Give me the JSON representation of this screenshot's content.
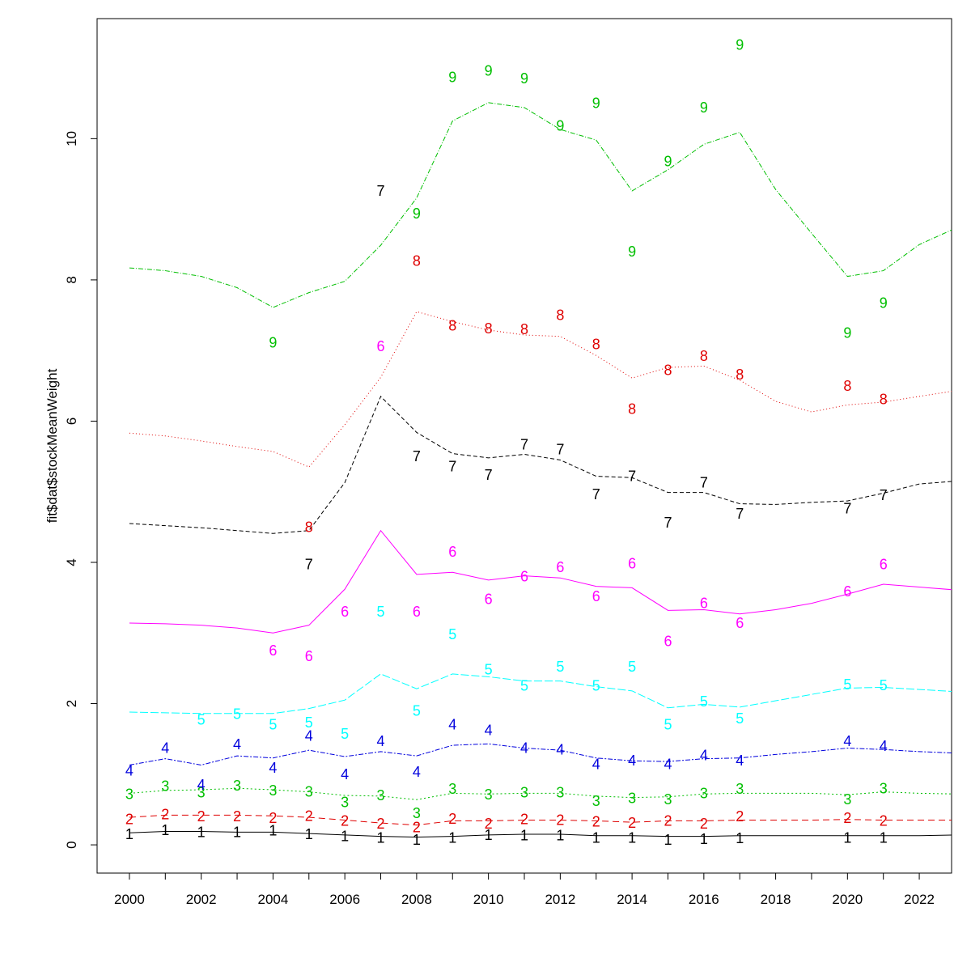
{
  "chart_data": {
    "type": "line",
    "title": "",
    "xlabel": "",
    "ylabel": "fit$dat$stockMeanWeight",
    "xlim": [
      1999.1,
      2022.9
    ],
    "ylim": [
      -0.4,
      11.7
    ],
    "grid": false,
    "legend": "none",
    "x_ticks": [
      2000,
      2002,
      2004,
      2006,
      2008,
      2010,
      2012,
      2014,
      2016,
      2018,
      2020,
      2022
    ],
    "y_ticks": [
      0,
      2,
      4,
      6,
      8,
      10
    ],
    "x": [
      2000,
      2001,
      2002,
      2003,
      2004,
      2005,
      2006,
      2007,
      2008,
      2009,
      2010,
      2011,
      2012,
      2013,
      2014,
      2015,
      2016,
      2017,
      2018,
      2019,
      2020,
      2021,
      2022,
      2023
    ],
    "series": [
      {
        "label": "1",
        "color": "#000000",
        "dash": "",
        "fitted": [
          0.17,
          0.19,
          0.19,
          0.18,
          0.18,
          0.16,
          0.14,
          0.12,
          0.11,
          0.12,
          0.14,
          0.15,
          0.15,
          0.13,
          0.13,
          0.12,
          0.12,
          0.13,
          0.13,
          0.13,
          0.13,
          0.13,
          0.13,
          0.14
        ],
        "observed": [
          {
            "x": 2000,
            "y": 0.15
          },
          {
            "x": 2001,
            "y": 0.21
          },
          {
            "x": 2002,
            "y": 0.18
          },
          {
            "x": 2003,
            "y": 0.18
          },
          {
            "x": 2004,
            "y": 0.2
          },
          {
            "x": 2005,
            "y": 0.15
          },
          {
            "x": 2006,
            "y": 0.12
          },
          {
            "x": 2007,
            "y": 0.1
          },
          {
            "x": 2008,
            "y": 0.07
          },
          {
            "x": 2009,
            "y": 0.1
          },
          {
            "x": 2010,
            "y": 0.14
          },
          {
            "x": 2011,
            "y": 0.13
          },
          {
            "x": 2012,
            "y": 0.13
          },
          {
            "x": 2013,
            "y": 0.1
          },
          {
            "x": 2014,
            "y": 0.1
          },
          {
            "x": 2015,
            "y": 0.07
          },
          {
            "x": 2016,
            "y": 0.08
          },
          {
            "x": 2017,
            "y": 0.09
          },
          {
            "x": 2020,
            "y": 0.1
          },
          {
            "x": 2021,
            "y": 0.1
          }
        ]
      },
      {
        "label": "2",
        "color": "#df0000",
        "dash": "8,5",
        "fitted": [
          0.39,
          0.42,
          0.42,
          0.42,
          0.41,
          0.39,
          0.35,
          0.31,
          0.28,
          0.34,
          0.34,
          0.35,
          0.35,
          0.34,
          0.32,
          0.34,
          0.34,
          0.35,
          0.35,
          0.35,
          0.36,
          0.35,
          0.35,
          0.35
        ],
        "observed": [
          {
            "x": 2000,
            "y": 0.36
          },
          {
            "x": 2001,
            "y": 0.43
          },
          {
            "x": 2002,
            "y": 0.4
          },
          {
            "x": 2003,
            "y": 0.4
          },
          {
            "x": 2004,
            "y": 0.38
          },
          {
            "x": 2005,
            "y": 0.41
          },
          {
            "x": 2006,
            "y": 0.34
          },
          {
            "x": 2007,
            "y": 0.3
          },
          {
            "x": 2008,
            "y": 0.25
          },
          {
            "x": 2009,
            "y": 0.37
          },
          {
            "x": 2010,
            "y": 0.3
          },
          {
            "x": 2011,
            "y": 0.36
          },
          {
            "x": 2012,
            "y": 0.35
          },
          {
            "x": 2013,
            "y": 0.33
          },
          {
            "x": 2014,
            "y": 0.31
          },
          {
            "x": 2015,
            "y": 0.34
          },
          {
            "x": 2016,
            "y": 0.3
          },
          {
            "x": 2017,
            "y": 0.4
          },
          {
            "x": 2020,
            "y": 0.38
          },
          {
            "x": 2021,
            "y": 0.34
          }
        ]
      },
      {
        "label": "3",
        "color": "#00bf00",
        "dash": "2,3",
        "fitted": [
          0.73,
          0.77,
          0.78,
          0.8,
          0.78,
          0.75,
          0.7,
          0.69,
          0.64,
          0.73,
          0.72,
          0.73,
          0.73,
          0.69,
          0.67,
          0.68,
          0.72,
          0.73,
          0.73,
          0.73,
          0.71,
          0.75,
          0.73,
          0.72
        ],
        "observed": [
          {
            "x": 2000,
            "y": 0.72
          },
          {
            "x": 2001,
            "y": 0.83
          },
          {
            "x": 2002,
            "y": 0.74
          },
          {
            "x": 2003,
            "y": 0.84
          },
          {
            "x": 2004,
            "y": 0.77
          },
          {
            "x": 2005,
            "y": 0.75
          },
          {
            "x": 2006,
            "y": 0.6
          },
          {
            "x": 2007,
            "y": 0.7
          },
          {
            "x": 2008,
            "y": 0.45
          },
          {
            "x": 2009,
            "y": 0.79
          },
          {
            "x": 2010,
            "y": 0.71
          },
          {
            "x": 2011,
            "y": 0.74
          },
          {
            "x": 2012,
            "y": 0.74
          },
          {
            "x": 2013,
            "y": 0.62
          },
          {
            "x": 2014,
            "y": 0.66
          },
          {
            "x": 2015,
            "y": 0.64
          },
          {
            "x": 2016,
            "y": 0.73
          },
          {
            "x": 2017,
            "y": 0.79
          },
          {
            "x": 2020,
            "y": 0.64
          },
          {
            "x": 2021,
            "y": 0.8
          }
        ]
      },
      {
        "label": "4",
        "color": "#0000dd",
        "dash": "6,2,2,2",
        "fitted": [
          1.13,
          1.22,
          1.13,
          1.26,
          1.23,
          1.34,
          1.25,
          1.32,
          1.26,
          1.41,
          1.43,
          1.37,
          1.34,
          1.23,
          1.19,
          1.18,
          1.22,
          1.23,
          1.28,
          1.32,
          1.37,
          1.35,
          1.32,
          1.3
        ],
        "observed": [
          {
            "x": 2000,
            "y": 1.05
          },
          {
            "x": 2001,
            "y": 1.37
          },
          {
            "x": 2002,
            "y": 0.85
          },
          {
            "x": 2003,
            "y": 1.42
          },
          {
            "x": 2004,
            "y": 1.09
          },
          {
            "x": 2005,
            "y": 1.54
          },
          {
            "x": 2006,
            "y": 1.0
          },
          {
            "x": 2007,
            "y": 1.47
          },
          {
            "x": 2008,
            "y": 1.03
          },
          {
            "x": 2009,
            "y": 1.7
          },
          {
            "x": 2010,
            "y": 1.62
          },
          {
            "x": 2011,
            "y": 1.37
          },
          {
            "x": 2012,
            "y": 1.35
          },
          {
            "x": 2013,
            "y": 1.14
          },
          {
            "x": 2014,
            "y": 1.19
          },
          {
            "x": 2015,
            "y": 1.14
          },
          {
            "x": 2016,
            "y": 1.27
          },
          {
            "x": 2017,
            "y": 1.19
          },
          {
            "x": 2020,
            "y": 1.47
          },
          {
            "x": 2021,
            "y": 1.4
          }
        ]
      },
      {
        "label": "5",
        "color": "#00ffff",
        "dash": "10,3",
        "fitted": [
          1.88,
          1.87,
          1.86,
          1.86,
          1.86,
          1.93,
          2.05,
          2.42,
          2.21,
          2.42,
          2.38,
          2.32,
          2.32,
          2.24,
          2.18,
          1.94,
          1.99,
          1.95,
          2.04,
          2.13,
          2.22,
          2.23,
          2.2,
          2.17
        ],
        "observed": [
          {
            "x": 2002,
            "y": 1.77
          },
          {
            "x": 2003,
            "y": 1.85
          },
          {
            "x": 2004,
            "y": 1.7
          },
          {
            "x": 2005,
            "y": 1.73
          },
          {
            "x": 2006,
            "y": 1.57
          },
          {
            "x": 2007,
            "y": 3.3
          },
          {
            "x": 2008,
            "y": 1.9
          },
          {
            "x": 2009,
            "y": 2.98
          },
          {
            "x": 2010,
            "y": 2.48
          },
          {
            "x": 2011,
            "y": 2.25
          },
          {
            "x": 2012,
            "y": 2.52
          },
          {
            "x": 2013,
            "y": 2.25
          },
          {
            "x": 2014,
            "y": 2.52
          },
          {
            "x": 2015,
            "y": 1.7
          },
          {
            "x": 2016,
            "y": 2.03
          },
          {
            "x": 2017,
            "y": 1.79
          },
          {
            "x": 2020,
            "y": 2.27
          },
          {
            "x": 2021,
            "y": 2.26
          }
        ]
      },
      {
        "label": "6",
        "color": "#ff00ff",
        "dash": "",
        "fitted": [
          3.14,
          3.13,
          3.11,
          3.07,
          3.0,
          3.11,
          3.62,
          4.45,
          3.83,
          3.86,
          3.75,
          3.81,
          3.78,
          3.66,
          3.64,
          3.32,
          3.33,
          3.27,
          3.33,
          3.42,
          3.55,
          3.69,
          3.65,
          3.61
        ],
        "observed": [
          {
            "x": 2004,
            "y": 2.75
          },
          {
            "x": 2005,
            "y": 2.67
          },
          {
            "x": 2006,
            "y": 3.3
          },
          {
            "x": 2007,
            "y": 7.06
          },
          {
            "x": 2008,
            "y": 3.3
          },
          {
            "x": 2009,
            "y": 4.15
          },
          {
            "x": 2010,
            "y": 3.48
          },
          {
            "x": 2011,
            "y": 3.8
          },
          {
            "x": 2012,
            "y": 3.93
          },
          {
            "x": 2013,
            "y": 3.52
          },
          {
            "x": 2014,
            "y": 3.98
          },
          {
            "x": 2015,
            "y": 2.88
          },
          {
            "x": 2016,
            "y": 3.42
          },
          {
            "x": 2017,
            "y": 3.14
          },
          {
            "x": 2020,
            "y": 3.59
          },
          {
            "x": 2021,
            "y": 3.97
          }
        ]
      },
      {
        "label": "7",
        "color": "#000000",
        "dash": "5,3",
        "fitted": [
          4.55,
          4.52,
          4.49,
          4.45,
          4.41,
          4.45,
          5.13,
          6.35,
          5.84,
          5.54,
          5.48,
          5.53,
          5.45,
          5.22,
          5.2,
          4.99,
          4.99,
          4.83,
          4.82,
          4.85,
          4.87,
          4.98,
          5.11,
          5.15
        ],
        "observed": [
          {
            "x": 2005,
            "y": 3.97
          },
          {
            "x": 2007,
            "y": 9.26
          },
          {
            "x": 2008,
            "y": 5.5
          },
          {
            "x": 2009,
            "y": 5.36
          },
          {
            "x": 2010,
            "y": 5.24
          },
          {
            "x": 2011,
            "y": 5.67
          },
          {
            "x": 2012,
            "y": 5.6
          },
          {
            "x": 2013,
            "y": 4.96
          },
          {
            "x": 2014,
            "y": 5.22
          },
          {
            "x": 2015,
            "y": 4.56
          },
          {
            "x": 2016,
            "y": 5.13
          },
          {
            "x": 2017,
            "y": 4.69
          },
          {
            "x": 2020,
            "y": 4.76
          },
          {
            "x": 2021,
            "y": 4.95
          }
        ]
      },
      {
        "label": "8",
        "color": "#df0000",
        "dash": "1,3",
        "fitted": [
          5.83,
          5.79,
          5.72,
          5.64,
          5.57,
          5.35,
          5.95,
          6.62,
          7.55,
          7.41,
          7.29,
          7.22,
          7.2,
          6.93,
          6.61,
          6.76,
          6.78,
          6.58,
          6.28,
          6.13,
          6.23,
          6.27,
          6.35,
          6.43
        ],
        "observed": [
          {
            "x": 2005,
            "y": 4.5
          },
          {
            "x": 2008,
            "y": 8.27
          },
          {
            "x": 2009,
            "y": 7.35
          },
          {
            "x": 2010,
            "y": 7.31
          },
          {
            "x": 2011,
            "y": 7.3
          },
          {
            "x": 2012,
            "y": 7.5
          },
          {
            "x": 2013,
            "y": 7.09
          },
          {
            "x": 2014,
            "y": 6.17
          },
          {
            "x": 2015,
            "y": 6.72
          },
          {
            "x": 2016,
            "y": 6.92
          },
          {
            "x": 2017,
            "y": 6.66
          },
          {
            "x": 2020,
            "y": 6.5
          },
          {
            "x": 2021,
            "y": 6.31
          }
        ]
      },
      {
        "label": "9",
        "color": "#00bf00",
        "dash": "6,2,1,2",
        "fitted": [
          8.17,
          8.13,
          8.05,
          7.89,
          7.61,
          7.82,
          7.98,
          8.49,
          9.16,
          10.25,
          10.51,
          10.44,
          10.13,
          9.98,
          9.26,
          9.56,
          9.92,
          10.09,
          9.28,
          8.66,
          8.05,
          8.13,
          8.5,
          8.73
        ],
        "observed": [
          {
            "x": 2004,
            "y": 7.11
          },
          {
            "x": 2008,
            "y": 8.94
          },
          {
            "x": 2009,
            "y": 10.87
          },
          {
            "x": 2010,
            "y": 10.96
          },
          {
            "x": 2011,
            "y": 10.85
          },
          {
            "x": 2012,
            "y": 10.18
          },
          {
            "x": 2013,
            "y": 10.5
          },
          {
            "x": 2014,
            "y": 8.4
          },
          {
            "x": 2015,
            "y": 9.68
          },
          {
            "x": 2016,
            "y": 10.44
          },
          {
            "x": 2017,
            "y": 11.33
          },
          {
            "x": 2020,
            "y": 7.25
          },
          {
            "x": 2021,
            "y": 7.67
          }
        ]
      }
    ]
  }
}
